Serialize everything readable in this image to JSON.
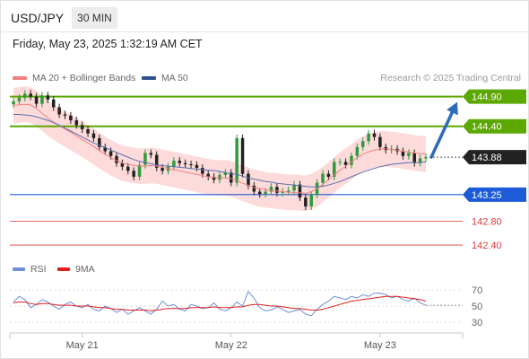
{
  "header": {
    "symbol": "USD/JPY",
    "timeframe": "30 MIN"
  },
  "timestamp": "Friday, May 23, 2025 1:32:19 AM CET",
  "legend": {
    "ma20": "MA 20 + Bollinger Bands",
    "ma50": "MA 50",
    "credit": "Research © 2025 Trading Central"
  },
  "rsi_legend": {
    "rsi": "RSI",
    "ma9": "9MA"
  },
  "colors": {
    "ma20": "#f08080",
    "band": "#fdd7d7",
    "ma50": "#5a6fb0",
    "green_level": "#5aa800",
    "blue_level": "#1e5bd8",
    "red_level": "#d93a3a",
    "candle_up": "#2e9a3c",
    "candle_down": "#222222",
    "arrow": "#2c6bb8",
    "rsi": "#6c8fd6",
    "rsi_ma": "#e02020",
    "last_price": "#222222"
  },
  "chart_data": {
    "type": "candlestick",
    "price_axis_labels": [
      "144.90",
      "144.40",
      "143.88",
      "143.25",
      "142.80",
      "142.40"
    ],
    "price_range": [
      142.25,
      145.0
    ],
    "levels": [
      {
        "label": "144.90",
        "value": 144.9,
        "kind": "resistance",
        "color": "green"
      },
      {
        "label": "144.40",
        "value": 144.4,
        "kind": "resistance",
        "color": "green"
      },
      {
        "label": "143.88",
        "value": 143.88,
        "kind": "last",
        "color": "dark"
      },
      {
        "label": "143.25",
        "value": 143.25,
        "kind": "pivot",
        "color": "blue"
      },
      {
        "label": "142.80",
        "value": 142.8,
        "kind": "support",
        "color": "red"
      },
      {
        "label": "142.40",
        "value": 142.4,
        "kind": "support",
        "color": "red"
      }
    ],
    "x_labels": [
      "May 21",
      "May 22",
      "May 23"
    ],
    "x_label_index": [
      12,
      38,
      64
    ],
    "closes": [
      144.82,
      144.88,
      144.95,
      144.9,
      144.78,
      144.92,
      144.85,
      144.72,
      144.6,
      144.58,
      144.5,
      144.42,
      144.35,
      144.28,
      144.2,
      144.05,
      143.98,
      143.9,
      143.78,
      143.72,
      143.65,
      143.55,
      143.75,
      143.95,
      143.92,
      143.7,
      143.65,
      143.72,
      143.82,
      143.78,
      143.76,
      143.75,
      143.7,
      143.6,
      143.55,
      143.5,
      143.58,
      143.62,
      143.45,
      144.2,
      143.6,
      143.4,
      143.3,
      143.26,
      143.3,
      143.38,
      143.28,
      143.3,
      143.32,
      143.42,
      143.2,
      143.05,
      143.25,
      143.45,
      143.6,
      143.55,
      143.8,
      143.8,
      143.75,
      143.9,
      144.05,
      144.15,
      144.28,
      144.22,
      144.05,
      144.0,
      144.02,
      143.98,
      143.9,
      143.95,
      143.78,
      143.86,
      143.88
    ],
    "ma20_path": [
      144.75,
      144.76,
      144.77,
      144.76,
      144.7,
      144.62,
      144.54,
      144.47,
      144.41,
      144.35,
      144.3,
      144.24,
      144.18,
      144.12,
      144.06,
      143.99,
      143.93,
      143.87,
      143.82,
      143.78,
      143.76,
      143.74,
      143.73,
      143.73,
      143.74,
      143.73,
      143.71,
      143.69,
      143.67,
      143.65,
      143.63,
      143.61,
      143.59,
      143.57,
      143.55,
      143.54,
      143.53,
      143.53,
      143.52,
      143.48,
      143.44,
      143.41,
      143.37,
      143.35,
      143.33,
      143.32,
      143.31,
      143.3,
      143.29,
      143.29,
      143.28,
      143.27,
      143.3,
      143.35,
      143.42,
      143.5,
      143.58,
      143.66,
      143.73,
      143.8,
      143.87,
      143.93,
      143.97,
      144.0,
      144.02,
      144.02,
      144.01,
      144.0,
      143.98,
      143.97,
      143.95,
      143.94,
      143.93
    ],
    "ma50_path": [
      144.6,
      144.6,
      144.59,
      144.58,
      144.56,
      144.53,
      144.5,
      144.46,
      144.42,
      144.37,
      144.32,
      144.27,
      144.22,
      144.17,
      144.12,
      144.08,
      144.04,
      144.0,
      143.96,
      143.92,
      143.88,
      143.84,
      143.81,
      143.79,
      143.77,
      143.75,
      143.74,
      143.73,
      143.72,
      143.71,
      143.7,
      143.69,
      143.68,
      143.67,
      143.66,
      143.65,
      143.64,
      143.62,
      143.6,
      143.59,
      143.56,
      143.53,
      143.51,
      143.49,
      143.47,
      143.46,
      143.44,
      143.43,
      143.42,
      143.41,
      143.4,
      143.39,
      143.38,
      143.38,
      143.39,
      143.41,
      143.44,
      143.47,
      143.51,
      143.55,
      143.59,
      143.63,
      143.66,
      143.69,
      143.72,
      143.74,
      143.76,
      143.77,
      143.78,
      143.79,
      143.79,
      143.79,
      143.8
    ],
    "band_width": 0.3,
    "rsi_axis_labels": [
      "70",
      "50",
      "30"
    ],
    "rsi_range": [
      20,
      80
    ],
    "rsi": [
      55,
      62,
      58,
      48,
      52,
      58,
      55,
      50,
      46,
      52,
      55,
      50,
      48,
      52,
      46,
      44,
      50,
      47,
      42,
      46,
      40,
      44,
      48,
      44,
      40,
      46,
      56,
      50,
      52,
      46,
      44,
      52,
      50,
      47,
      48,
      54,
      46,
      44,
      48,
      55,
      50,
      68,
      60,
      48,
      44,
      45,
      49,
      46,
      42,
      44,
      46,
      40,
      38,
      46,
      52,
      56,
      62,
      60,
      58,
      62,
      60,
      64,
      62,
      66,
      66,
      64,
      60,
      62,
      58,
      56,
      60,
      54,
      51
    ],
    "rsi_ma": [
      54,
      55,
      55,
      53,
      52,
      53,
      53,
      52,
      51,
      51,
      51,
      50,
      50,
      50,
      49,
      48,
      48,
      47,
      46,
      46,
      45,
      45,
      45,
      45,
      44,
      45,
      46,
      47,
      47,
      47,
      47,
      48,
      48,
      48,
      48,
      49,
      48,
      48,
      48,
      49,
      49,
      51,
      52,
      52,
      51,
      50,
      50,
      49,
      48,
      47,
      47,
      46,
      45,
      45,
      46,
      48,
      50,
      52,
      54,
      56,
      57,
      58,
      59,
      60,
      61,
      62,
      62,
      62,
      61,
      60,
      59,
      58,
      56
    ],
    "projection": {
      "from": 143.88,
      "to": 144.9
    }
  }
}
